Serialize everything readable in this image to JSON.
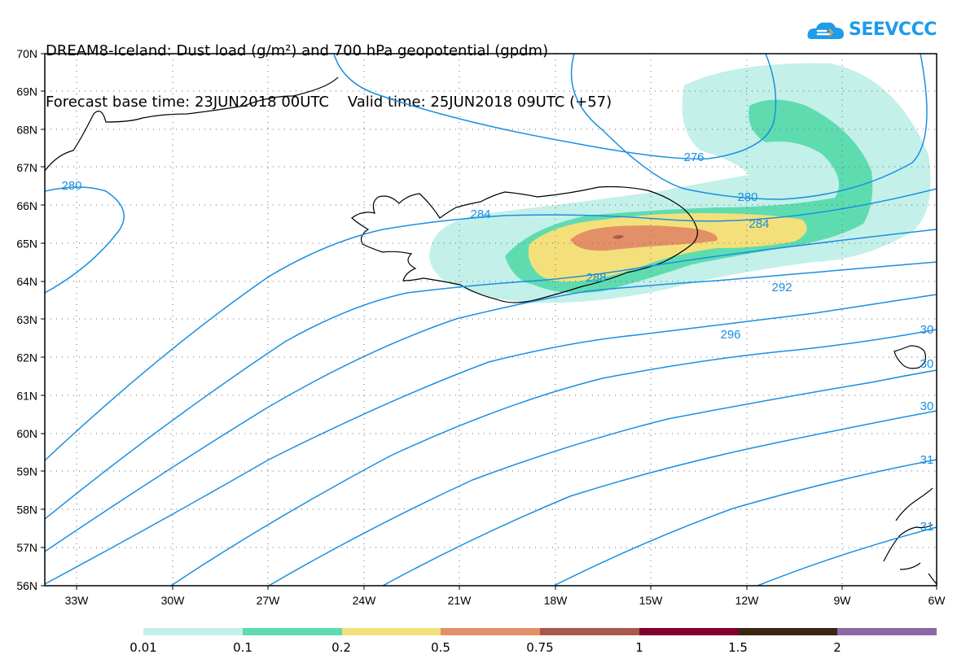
{
  "title": {
    "line1": "DREAM8-Iceland: Dust load (g/m²) and 700 hPa geopotential (gpdm)",
    "line2_base": "Forecast base time: 23JUN2018 00UTC",
    "line2_valid": "Valid time: 25JUN2018 09UTC (+57)"
  },
  "logo": {
    "text": "SEEVCCC",
    "color": "#1e9be9"
  },
  "map": {
    "region": "Iceland",
    "lon_range": [
      -34.5,
      -6
    ],
    "lat_range": [
      56,
      70
    ],
    "lat_labels": [
      "70N",
      "69N",
      "68N",
      "67N",
      "66N",
      "65N",
      "64N",
      "63N",
      "62N",
      "61N",
      "60N",
      "59N",
      "58N",
      "57N",
      "56N"
    ],
    "lon_labels": [
      "33W",
      "30W",
      "27W",
      "24W",
      "21W",
      "18W",
      "15W",
      "12W",
      "9W",
      "6W"
    ],
    "gridlines": "dotted",
    "contour_color": "#1a8fe0",
    "contour_labels": [
      "276",
      "280",
      "280",
      "284",
      "284",
      "288",
      "292",
      "296",
      "30",
      "30",
      "30",
      "31",
      "31"
    ]
  },
  "legend": {
    "colors": [
      "#c4f0ea",
      "#5edcb0",
      "#f4e07a",
      "#e39068",
      "#a85a4a",
      "#800030",
      "#3c2410",
      "#8c68a6"
    ],
    "labels": [
      "0.01",
      "0.1",
      "0.2",
      "0.5",
      "0.75",
      "1",
      "1.5",
      "2"
    ]
  }
}
